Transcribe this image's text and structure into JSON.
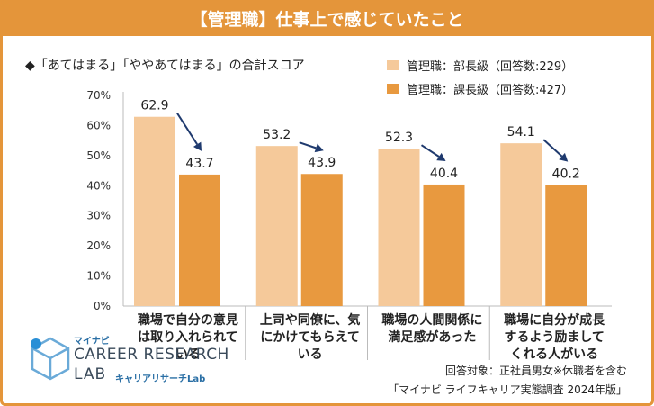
{
  "header": {
    "title": "【管理職】仕事上で感じていたこと"
  },
  "subtitle": "◆「あてはまる」「ややあてはまる」の合計スコア",
  "legend": [
    {
      "label": "管理職：部長級（回答数:229）",
      "color": "#f5c99a"
    },
    {
      "label": "管理職：課長級（回答数:427）",
      "color": "#e8993f"
    }
  ],
  "chart_data": {
    "type": "bar",
    "categories": [
      [
        "職場で自分の意見",
        "は取り入れられて",
        "いる"
      ],
      [
        "上司や同僚に、気",
        "にかけてもらえて",
        "いる"
      ],
      [
        "職場の人間関係に",
        "満足感があった"
      ],
      [
        "職場に自分が成長",
        "するよう励まして",
        "くれる人がいる"
      ]
    ],
    "series": [
      {
        "name": "管理職：部長級（回答数:229）",
        "values": [
          62.9,
          53.2,
          52.3,
          54.1
        ],
        "color": "#f5c99a"
      },
      {
        "name": "管理職：課長級（回答数:427）",
        "values": [
          43.7,
          43.9,
          40.4,
          40.2
        ],
        "color": "#e8993f"
      }
    ],
    "value_labels": [
      [
        "62.9",
        "53.2",
        "52.3",
        "54.1"
      ],
      [
        "43.7",
        "43.9",
        "40.4",
        "40.2"
      ]
    ],
    "y_ticks": [
      "0%",
      "10%",
      "20%",
      "30%",
      "40%",
      "50%",
      "60%",
      "70%"
    ],
    "ylim": [
      0,
      70
    ],
    "arrows": true,
    "grid": false
  },
  "footnotes": [
    "回答対象：正社員男女※休職者を含む",
    "「マイナビ ライフキャリア実態調査 2024年版」"
  ],
  "logo": {
    "top_text": "マイナビ",
    "line1": "CAREER RESEARCH",
    "line2": "LAB",
    "sub_text": "キャリアリサーチLab"
  },
  "colors": {
    "accent": "#e4953a",
    "arrow": "#1f3a6e",
    "axis": "#bbbbbb"
  }
}
